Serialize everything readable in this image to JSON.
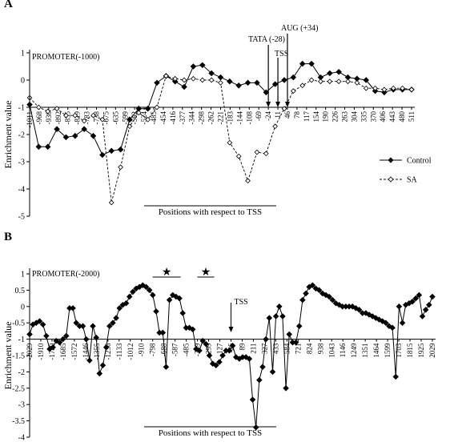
{
  "chart_data": [
    {
      "panel_label": "A",
      "type": "line",
      "ylabel": "Enrichment value",
      "xlabel": "Positions with respect to TSS",
      "ylim": [
        -5,
        1
      ],
      "y_ticks": [
        1,
        0,
        -1,
        -2,
        -3,
        -4,
        -5
      ],
      "baseline": -1,
      "grid": false,
      "legend_position": "right",
      "x_tick_labels": [
        "-1011",
        "-968",
        "-930",
        "-892",
        "-855",
        "-819",
        "-783",
        "-738",
        "-675",
        "-635",
        "-599",
        "-562",
        "-524",
        "-485",
        "-454",
        "-416",
        "-377",
        "-344",
        "-298",
        "-262",
        "-221",
        "-183",
        "-144",
        "-108",
        "-69",
        "-24",
        "11",
        "46",
        "78",
        "117",
        "154",
        "190",
        "226",
        "263",
        "304",
        "335",
        "370",
        "406",
        "443",
        "480",
        "511"
      ],
      "annotations": [
        {
          "text": "PROMOTER(-1000)",
          "at_tick": 0
        },
        {
          "text": "TATA (-28)",
          "at_tick": 25
        },
        {
          "text": "TSS",
          "at_tick": 26
        },
        {
          "text": "AUG (+34)",
          "at_tick": 27
        }
      ],
      "series": [
        {
          "name": "Control",
          "style": "solid",
          "marker": "filled-diamond",
          "values": [
            -0.9,
            -2.45,
            -2.45,
            -1.8,
            -2.1,
            -2.05,
            -1.8,
            -2.05,
            -2.75,
            -2.6,
            -2.55,
            -1.45,
            -1.05,
            -1.05,
            -0.1,
            0.15,
            -0.05,
            -0.25,
            0.5,
            0.55,
            0.25,
            0.1,
            -0.05,
            -0.2,
            -0.1,
            -0.1,
            -0.45,
            -0.15,
            0.0,
            0.1,
            0.6,
            0.6,
            0.1,
            0.25,
            0.3,
            0.1,
            0.05,
            0.0,
            -0.4,
            -0.45,
            -0.35,
            -0.35,
            -0.35
          ]
        },
        {
          "name": "SA",
          "style": "dashed",
          "marker": "open-diamond",
          "values": [
            -0.65,
            -1.0,
            -1.15,
            -1.05,
            -1.3,
            -1.3,
            -1.5,
            -1.3,
            -1.45,
            -4.5,
            -3.2,
            -1.7,
            -1.2,
            -1.45,
            -1.0,
            0.15,
            0.05,
            0.0,
            0.05,
            0.0,
            0.0,
            -0.1,
            -2.3,
            -2.8,
            -3.7,
            -2.65,
            -2.7,
            -1.7,
            -1.05,
            -0.4,
            -0.2,
            0.0,
            -0.05,
            -0.05,
            -0.05,
            -0.05,
            -0.1,
            -0.3,
            -0.3,
            -0.35,
            -0.3,
            -0.3,
            -0.35
          ]
        }
      ]
    },
    {
      "panel_label": "B",
      "type": "line",
      "ylabel": "Enrichment value",
      "xlabel": "Positions with respect to TSS",
      "ylim": [
        -4,
        1
      ],
      "y_ticks": [
        1,
        0.5,
        0,
        -0.5,
        -1,
        -1.5,
        -2,
        -2.5,
        -3,
        -3.5,
        -4
      ],
      "baseline": -1,
      "grid": false,
      "x_tick_labels": [
        "-2029",
        "-1910",
        "-1790",
        "-1685",
        "-1572",
        "-1446",
        "-1355",
        "-1236",
        "-1133",
        "-1012",
        "-910",
        "-798",
        "-688",
        "-587",
        "-485",
        "-399",
        "-299",
        "-127",
        "-26",
        "89",
        "211",
        "327",
        "433",
        "584",
        "721",
        "824",
        "938",
        "1043",
        "1146",
        "1249",
        "1351",
        "1464",
        "1599",
        "1703",
        "1815",
        "1925",
        "2029"
      ],
      "annotations": [
        {
          "text": "PROMOTER(-2000)",
          "at_tick": 0
        },
        {
          "text": "TSS",
          "at_tick": 18
        }
      ],
      "stars": [
        {
          "symbol": "★",
          "from_tick": 11,
          "to_tick": 13.5
        },
        {
          "symbol": "★",
          "from_tick": 15,
          "to_tick": 16.5
        }
      ],
      "series": [
        {
          "name": "Control",
          "style": "solid",
          "marker": "filled-diamond",
          "values": [
            -0.85,
            -0.55,
            -0.5,
            -0.45,
            -0.55,
            -0.9,
            -1.3,
            -1.25,
            -1.05,
            -1.1,
            -1.0,
            -0.9,
            -0.05,
            -0.05,
            -0.5,
            -0.6,
            -0.6,
            -1.0,
            -1.65,
            -0.6,
            -0.95,
            -2.05,
            -1.8,
            -1.25,
            -0.6,
            -0.5,
            -0.35,
            -0.05,
            0.05,
            0.1,
            0.3,
            0.45,
            0.55,
            0.6,
            0.65,
            0.6,
            0.5,
            0.35,
            -0.15,
            -0.8,
            -0.8,
            -1.85,
            0.2,
            0.35,
            0.3,
            0.25,
            -0.2,
            -0.65,
            -0.65,
            -0.7,
            -1.3,
            -1.35,
            -1.05,
            -1.15,
            -1.5,
            -1.75,
            -1.8,
            -1.7,
            -1.5,
            -1.35,
            -1.35,
            -1.2,
            -1.55,
            -1.6,
            -1.55,
            -1.55,
            -1.6,
            -2.85,
            -3.7,
            -2.25,
            -1.85,
            -1.0,
            -0.35,
            -2.0,
            -0.3,
            0.0,
            -0.3,
            -2.5,
            -0.85,
            -1.1,
            -1.1,
            -0.6,
            0.2,
            0.4,
            0.6,
            0.65,
            0.55,
            0.5,
            0.4,
            0.35,
            0.3,
            0.2,
            0.1,
            0.05,
            0.0,
            0.0,
            0.0,
            0.0,
            -0.05,
            -0.1,
            -0.2,
            -0.2,
            -0.25,
            -0.3,
            -0.35,
            -0.4,
            -0.45,
            -0.5,
            -0.6,
            -0.65,
            -2.15,
            0.0,
            -0.5,
            0.05,
            0.1,
            0.15,
            0.25,
            0.35,
            -0.3,
            -0.1,
            0.05,
            0.3
          ]
        }
      ]
    }
  ]
}
